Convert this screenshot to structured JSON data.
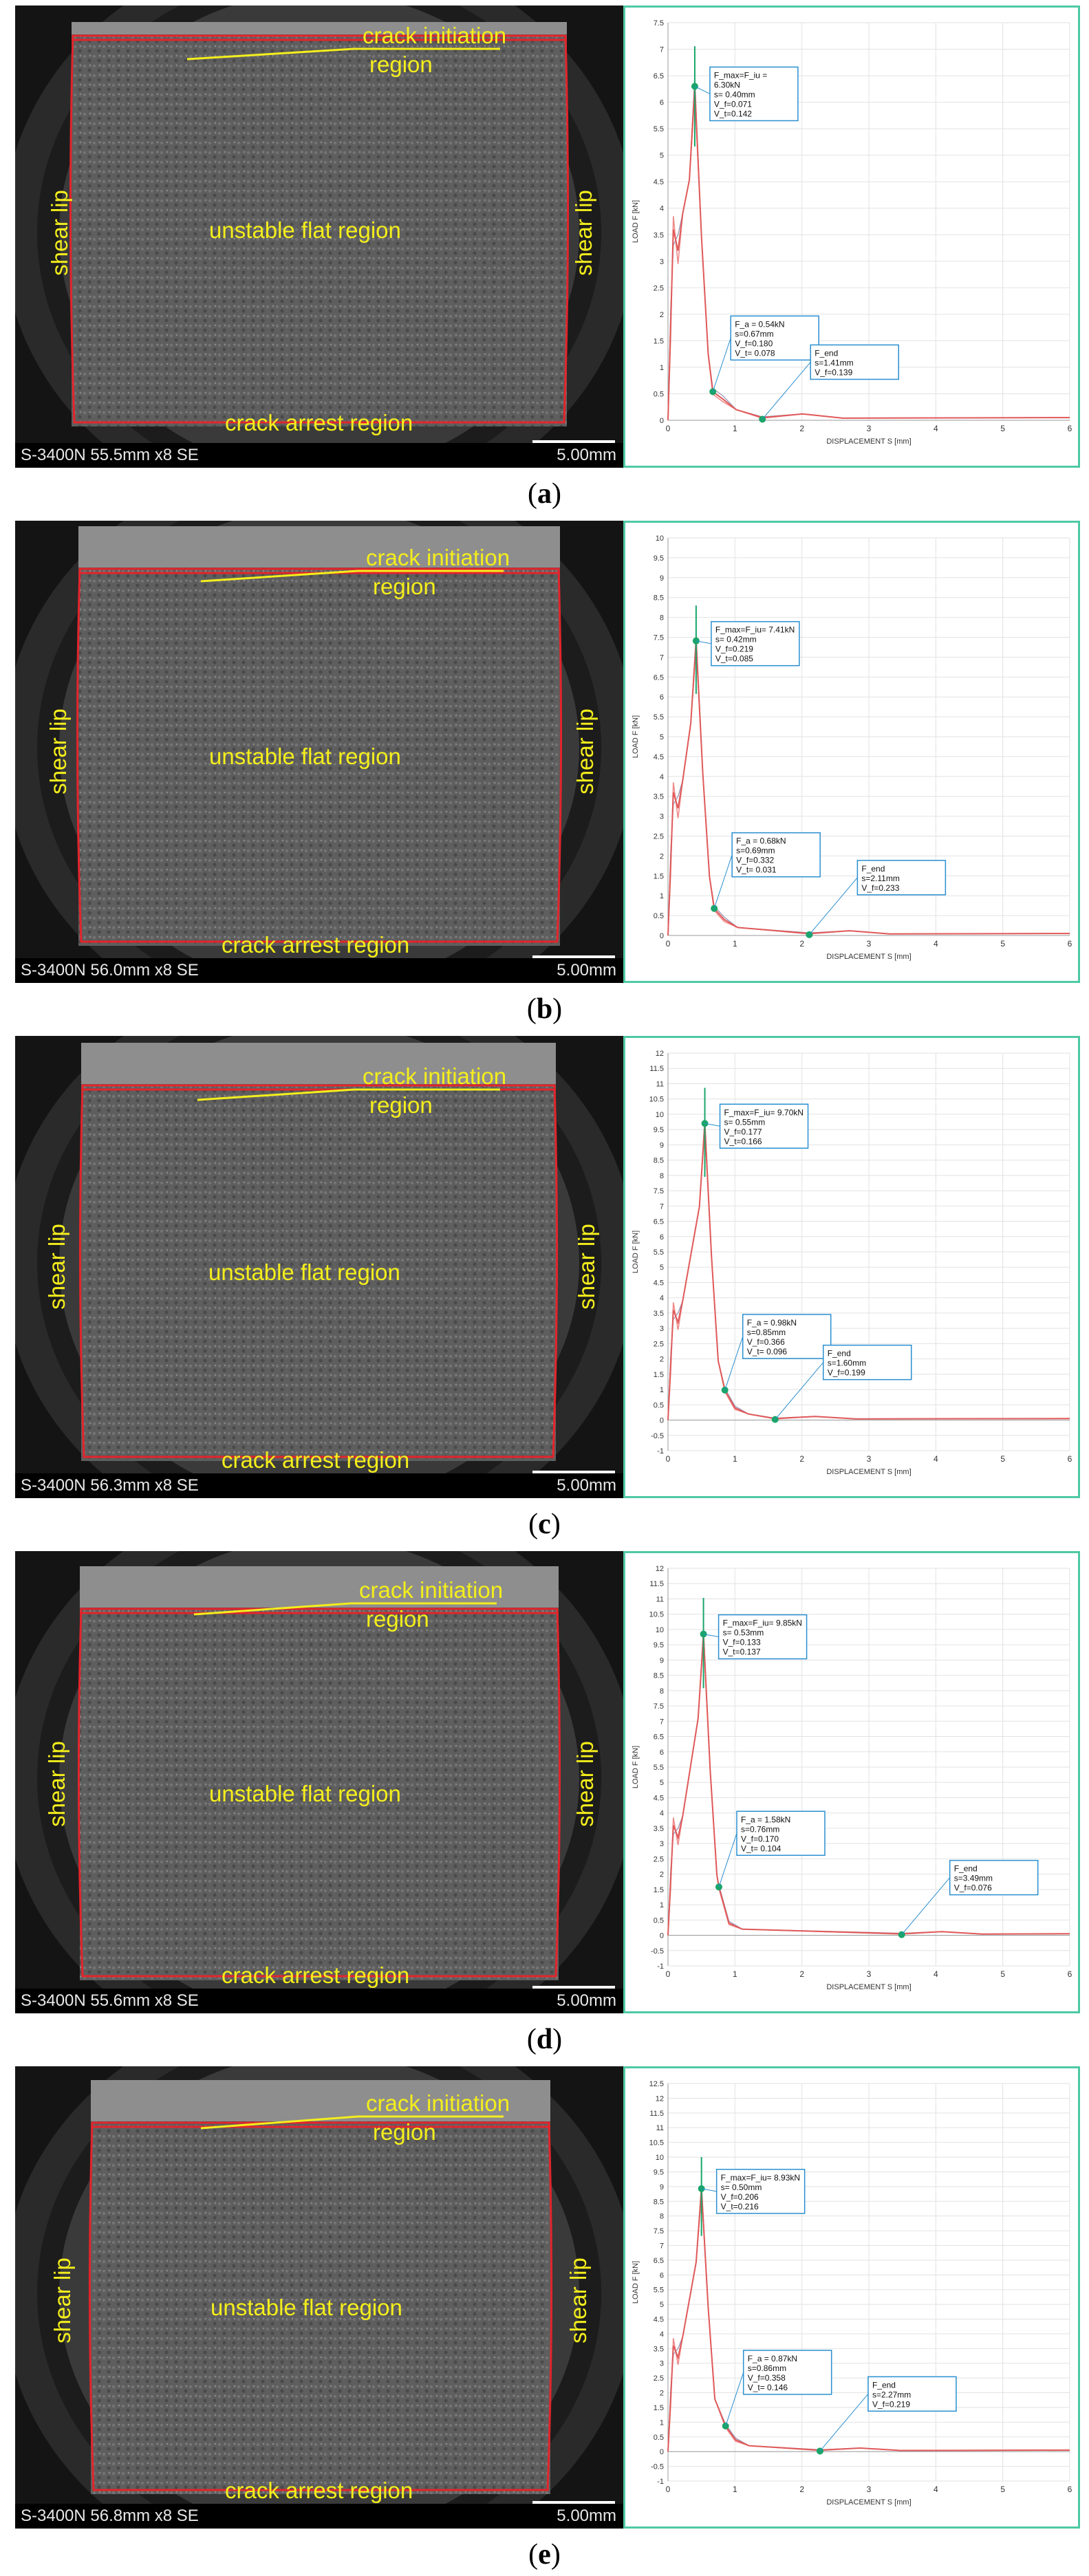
{
  "labels": {
    "crack_initiation": "crack initiation",
    "region": "region",
    "unstable_flat": "unstable flat region",
    "shear_lip": "shear lip",
    "crack_arrest": "crack arrest region",
    "scale": "5.00mm"
  },
  "colors": {
    "annotation": "#f4ee1c",
    "chart_frame": "#4ec9a4",
    "curve": "#e05a5a",
    "marker": "#1aa56a"
  },
  "panels": [
    {
      "caption": "a",
      "sem_info": "S-3400N 55.5mm x8 SE",
      "chart": {
        "ylabel": "LOAD F [kN]",
        "xlabel": "DISPLACEMENT S [mm]",
        "ymin": 0,
        "ymax": 7.5,
        "ystep": 0.5,
        "xmax": 6,
        "points": [
          {
            "x": 0.4,
            "y": 6.3,
            "lines": [
              "F_max=F_iu =",
              "6.30kN",
              "s= 0.40mm",
              "V_f=0.071",
              "V_t=0.142"
            ]
          },
          {
            "x": 0.67,
            "y": 0.54,
            "lines": [
              "F_a = 0.54kN",
              "s=0.67mm",
              "V_f=0.180",
              "V_t= 0.078"
            ]
          },
          {
            "x": 1.41,
            "y": 0.02,
            "lines": [
              "F_end",
              "s=1.41mm",
              "V_f=0.139"
            ]
          }
        ]
      }
    },
    {
      "caption": "b",
      "sem_info": "S-3400N 56.0mm x8 SE",
      "chart": {
        "ylabel": "LOAD F [kN]",
        "xlabel": "DISPLACEMENT S [mm]",
        "ymin": 0,
        "ymax": 10,
        "ystep": 0.5,
        "xmax": 6,
        "points": [
          {
            "x": 0.42,
            "y": 7.41,
            "lines": [
              "F_max=F_iu= 7.41kN",
              "s= 0.42mm",
              "V_f=0.219",
              "V_t=0.085"
            ]
          },
          {
            "x": 0.69,
            "y": 0.68,
            "lines": [
              "F_a = 0.68kN",
              "s=0.69mm",
              "V_f=0.332",
              "V_t= 0.031"
            ]
          },
          {
            "x": 2.11,
            "y": 0.02,
            "lines": [
              "F_end",
              "s=2.11mm",
              "V_f=0.233"
            ]
          }
        ]
      }
    },
    {
      "caption": "c",
      "sem_info": "S-3400N 56.3mm x8 SE",
      "chart": {
        "ylabel": "LOAD F [kN]",
        "xlabel": "DISPLACEMENT S [mm]",
        "ymin": -1,
        "ymax": 12,
        "ystep": 0.5,
        "xmax": 6,
        "points": [
          {
            "x": 0.55,
            "y": 9.7,
            "lines": [
              "F_max=F_iu= 9.70kN",
              "s= 0.55mm",
              "V_f=0.177",
              "V_t=0.166"
            ]
          },
          {
            "x": 0.85,
            "y": 0.98,
            "lines": [
              "F_a = 0.98kN",
              "s=0.85mm",
              "V_f=0.366",
              "V_t= 0.096"
            ]
          },
          {
            "x": 1.6,
            "y": 0.02,
            "lines": [
              "F_end",
              "s=1.60mm",
              "V_f=0.199"
            ]
          }
        ]
      }
    },
    {
      "caption": "d",
      "sem_info": "S-3400N 55.6mm x8 SE",
      "chart": {
        "ylabel": "LOAD F [kN]",
        "xlabel": "DISPLACEMENT S [mm]",
        "ymin": -1,
        "ymax": 12,
        "ystep": 0.5,
        "xmax": 6,
        "points": [
          {
            "x": 0.53,
            "y": 9.85,
            "lines": [
              "F_max=F_iu= 9.85kN",
              "s= 0.53mm",
              "V_f=0.133",
              "V_t=0.137"
            ]
          },
          {
            "x": 0.76,
            "y": 1.58,
            "lines": [
              "F_a = 1.58kN",
              "s=0.76mm",
              "V_f=0.170",
              "V_t= 0.104"
            ]
          },
          {
            "x": 3.49,
            "y": 0.02,
            "lines": [
              "F_end",
              "s=3.49mm",
              "V_f=0.076"
            ]
          }
        ]
      }
    },
    {
      "caption": "e",
      "sem_info": "S-3400N 56.8mm x8 SE",
      "chart": {
        "ylabel": "LOAD F [kN]",
        "xlabel": "DISPLACEMENT S [mm]",
        "ymin": -1,
        "ymax": 12.5,
        "ystep": 0.5,
        "xmax": 6,
        "points": [
          {
            "x": 0.5,
            "y": 8.93,
            "lines": [
              "F_max=F_iu= 8.93kN",
              "s= 0.50mm",
              "V_f=0.206",
              "V_t=0.216"
            ]
          },
          {
            "x": 0.86,
            "y": 0.87,
            "lines": [
              "F_a = 0.87kN",
              "s=0.86mm",
              "V_f=0.358",
              "V_t= 0.146"
            ]
          },
          {
            "x": 2.27,
            "y": 0.02,
            "lines": [
              "F_end",
              "s=2.27mm",
              "V_f=0.219"
            ]
          }
        ]
      }
    }
  ]
}
